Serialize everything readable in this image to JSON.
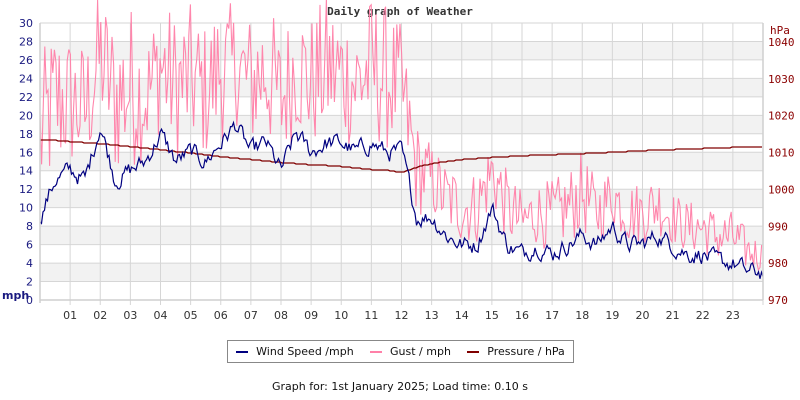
{
  "chart_data": {
    "type": "line",
    "title": "Daily graph of Weather",
    "x_ticks": [
      "01",
      "02",
      "03",
      "04",
      "05",
      "06",
      "07",
      "08",
      "09",
      "10",
      "11",
      "12",
      "13",
      "14",
      "15",
      "16",
      "17",
      "18",
      "19",
      "20",
      "21",
      "22",
      "23"
    ],
    "left_axis": {
      "label": "mph",
      "ticks": [
        0,
        2,
        4,
        6,
        8,
        10,
        12,
        14,
        16,
        18,
        20,
        22,
        24,
        26,
        28,
        30
      ],
      "ylim": [
        0,
        30
      ]
    },
    "right_axis": {
      "label": "hPa",
      "ticks": [
        970,
        980,
        990,
        1000,
        1010,
        1020,
        1030,
        1040
      ],
      "ylim": [
        970,
        1040
      ]
    },
    "grid": true,
    "legend_position": "bottom",
    "x_hours": [
      0,
      0.5,
      1,
      1.5,
      2,
      2.5,
      3,
      3.5,
      4,
      4.5,
      5,
      5.5,
      6,
      6.5,
      7,
      7.5,
      8,
      8.5,
      9,
      9.5,
      10,
      10.5,
      11,
      11.5,
      12,
      12.5,
      13,
      13.5,
      14,
      14.5,
      15,
      15.5,
      16,
      16.5,
      17,
      17.5,
      18,
      18.5,
      19,
      19.5,
      20,
      20.5,
      21,
      21.5,
      22,
      22.5,
      23,
      23.5,
      24
    ],
    "series": [
      {
        "name": "Wind Speed /mph",
        "color": "#000080",
        "axis": "left",
        "values": [
          9,
          13,
          14,
          13,
          19,
          13,
          14,
          15,
          18,
          15,
          16,
          15,
          17,
          19,
          16,
          17,
          14,
          18,
          16,
          17,
          17,
          16,
          17,
          16,
          16,
          9,
          9,
          7,
          6,
          6,
          10,
          6,
          5,
          6,
          5,
          6,
          7,
          6,
          8,
          6,
          6,
          7,
          6,
          5,
          5,
          4,
          4,
          3,
          3
        ]
      },
      {
        "name": "Gust / mph",
        "color": "#ff80a8",
        "axis": "left",
        "values": [
          24,
          28,
          27,
          26,
          32,
          28,
          30,
          27,
          31,
          29,
          30,
          28,
          31,
          30,
          29,
          31,
          27,
          31,
          29,
          31,
          30,
          29,
          31,
          30,
          28,
          18,
          16,
          14,
          13,
          13,
          17,
          13,
          11,
          12,
          12,
          13,
          15,
          12,
          14,
          12,
          12,
          13,
          11,
          10,
          10,
          9,
          9,
          7,
          6
        ]
      },
      {
        "name": "Pressure / hPa",
        "color": "#800000",
        "axis": "right",
        "values": [
          1013.4,
          1013.3,
          1013,
          1012.7,
          1012.4,
          1012,
          1011.6,
          1011.2,
          1010.8,
          1010.3,
          1009.9,
          1009.4,
          1008.9,
          1008.5,
          1008.1,
          1007.7,
          1007.3,
          1007,
          1006.7,
          1006.5,
          1006.2,
          1005.8,
          1005.4,
          1005.2,
          1004.6,
          1006,
          1007,
          1007.6,
          1008.1,
          1008.4,
          1008.7,
          1008.9,
          1009.1,
          1009.3,
          1009.4,
          1009.6,
          1009.7,
          1009.9,
          1010.1,
          1010.3,
          1010.5,
          1010.7,
          1010.8,
          1011,
          1011.1,
          1011.2,
          1011.4,
          1011.5,
          1011.6
        ]
      }
    ]
  },
  "legend": {
    "items": [
      {
        "label": "Wind Speed /mph",
        "color": "#000080"
      },
      {
        "label": "Gust / mph",
        "color": "#ff80a8"
      },
      {
        "label": "Pressure / hPa",
        "color": "#800000"
      }
    ]
  },
  "footer": {
    "text": "Graph for: 1st January 2025; Load time: 0.10 s"
  }
}
